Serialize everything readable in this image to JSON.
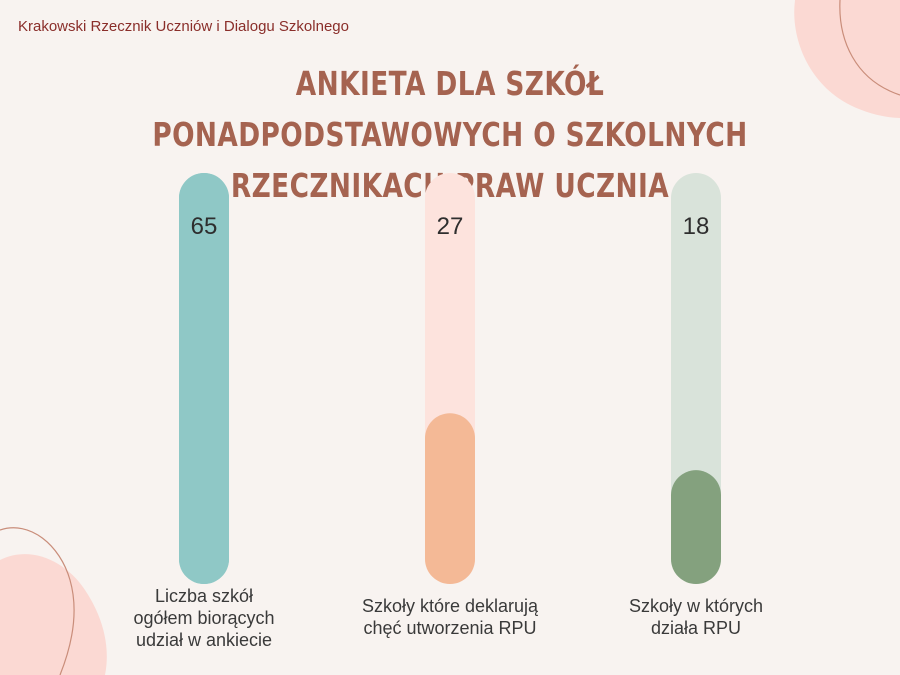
{
  "header": {
    "org_name": "Krakowski Rzecznik Uczniów i Dialogu Szkolnego"
  },
  "colors": {
    "background": "#f8f3f0",
    "title": "#a56350",
    "org_name": "#8a2e2a",
    "decor_pink": "#fbd9d3",
    "decor_line": "#c98d7a"
  },
  "chart_data": {
    "type": "bar",
    "title": "ANKIETA DLA SZKÓŁ PONADPODSTAWOWYCH O SZKOLNYCH RZECZNIKACH PRAW UCZNIA",
    "categories": [
      "Liczba szkół\nogółem biorących\nudział w ankiecie",
      "Szkoły które deklarują\nchęć utworzenia RPU",
      "Szkoły w których\ndziała RPU"
    ],
    "values": [
      65,
      27,
      18
    ],
    "ylim": [
      0,
      65
    ],
    "grid": false,
    "legend": "none",
    "series": [
      {
        "values": [
          65,
          27,
          18
        ]
      }
    ],
    "track_colors": [
      "#8fc8c6",
      "#fde3dd",
      "#d9e3da"
    ],
    "fill_colors": [
      "#8fc8c6",
      "#f4b996",
      "#84a17e"
    ]
  }
}
